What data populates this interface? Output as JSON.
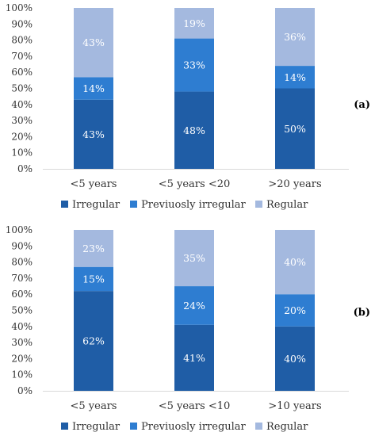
{
  "chart_data": [
    {
      "type": "bar",
      "stacked": true,
      "panel_label": "(a)",
      "categories": [
        "<5 years",
        "<5 years  <20",
        ">20 years"
      ],
      "series": [
        {
          "name": "Irregular",
          "color": "#1f5da6",
          "values": [
            43,
            48,
            50
          ]
        },
        {
          "name": "Previuosly irregular",
          "color": "#2e7dd1",
          "values": [
            14,
            33,
            14
          ]
        },
        {
          "name": "Regular",
          "color": "#a4b9df",
          "values": [
            43,
            19,
            36
          ]
        }
      ],
      "ylim": [
        0,
        100
      ],
      "yticks": [
        "0%",
        "10%",
        "20%",
        "30%",
        "40%",
        "50%",
        "60%",
        "70%",
        "80%",
        "90%",
        "100%"
      ],
      "unit": "%",
      "legend_position": "bottom",
      "grid": false
    },
    {
      "type": "bar",
      "stacked": true,
      "panel_label": "(b)",
      "categories": [
        "<5 years",
        "<5 years  <10",
        ">10 years"
      ],
      "series": [
        {
          "name": "Irregular",
          "color": "#1f5da6",
          "values": [
            62,
            41,
            40
          ]
        },
        {
          "name": "Previuosly irregular",
          "color": "#2e7dd1",
          "values": [
            15,
            24,
            20
          ]
        },
        {
          "name": "Regular",
          "color": "#a4b9df",
          "values": [
            23,
            35,
            40
          ]
        }
      ],
      "ylim": [
        0,
        100
      ],
      "yticks": [
        "0%",
        "10%",
        "20%",
        "30%",
        "40%",
        "50%",
        "60%",
        "70%",
        "80%",
        "90%",
        "100%"
      ],
      "unit": "%",
      "legend_position": "bottom",
      "grid": false
    }
  ]
}
